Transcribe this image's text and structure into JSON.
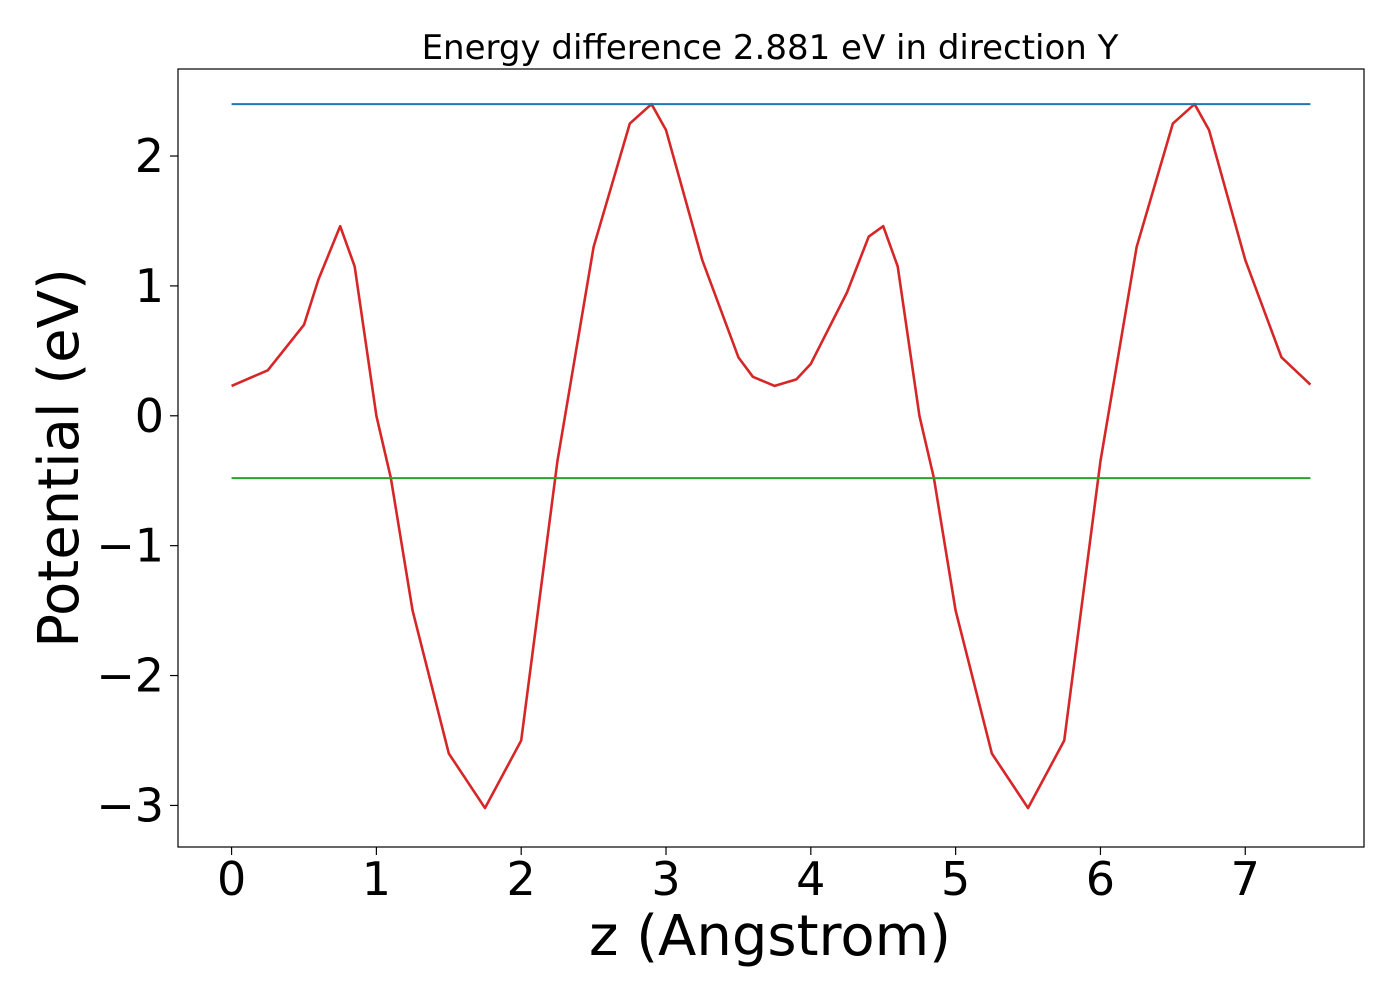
{
  "chart_data": {
    "type": "line",
    "title": "Energy difference 2.881 eV in direction Y",
    "xlabel": "z (Angstrom)",
    "ylabel": "Potential (eV)",
    "xlim": [
      -0.37,
      7.82
    ],
    "ylim": [
      -3.32,
      2.67
    ],
    "x_ticks": [
      0,
      1,
      2,
      3,
      4,
      5,
      6,
      7
    ],
    "x_tick_labels": [
      "0",
      "1",
      "2",
      "3",
      "4",
      "5",
      "6",
      "7"
    ],
    "y_ticks": [
      2,
      1,
      0,
      -1,
      -2,
      -3
    ],
    "y_tick_labels": [
      "2",
      "1",
      "0",
      "−1",
      "−2",
      "−3"
    ],
    "grid": false,
    "legend": "none",
    "series": [
      {
        "color": "#d62728",
        "x": [
          0,
          0.25,
          0.5,
          0.6,
          0.75,
          0.85,
          1.0,
          1.1,
          1.25,
          1.5,
          1.75,
          2.0,
          2.25,
          2.5,
          2.75,
          2.9,
          3.0,
          3.25,
          3.5,
          3.6,
          3.75,
          3.9,
          4.0,
          4.25,
          4.4,
          4.5,
          4.6,
          4.75,
          4.85,
          5.0,
          5.25,
          5.5,
          5.75,
          6.0,
          6.25,
          6.5,
          6.65,
          6.75,
          7.0,
          7.25,
          7.45
        ],
        "y": [
          0.23,
          0.35,
          0.7,
          1.05,
          1.46,
          1.15,
          0.0,
          -0.48,
          -1.5,
          -2.6,
          -3.02,
          -2.5,
          -0.35,
          1.3,
          2.25,
          2.4,
          2.2,
          1.2,
          0.45,
          0.3,
          0.23,
          0.28,
          0.4,
          0.95,
          1.38,
          1.46,
          1.15,
          0.0,
          -0.48,
          -1.5,
          -2.6,
          -3.02,
          -2.5,
          -0.35,
          1.3,
          2.25,
          2.4,
          2.2,
          1.2,
          0.45,
          0.24
        ]
      },
      {
        "color": "#1f77b4",
        "x": [
          0,
          7.45
        ],
        "y": [
          2.4,
          2.4
        ]
      },
      {
        "color": "#2ca02c",
        "x": [
          0,
          7.45
        ],
        "y": [
          -0.48,
          -0.48
        ]
      }
    ]
  }
}
